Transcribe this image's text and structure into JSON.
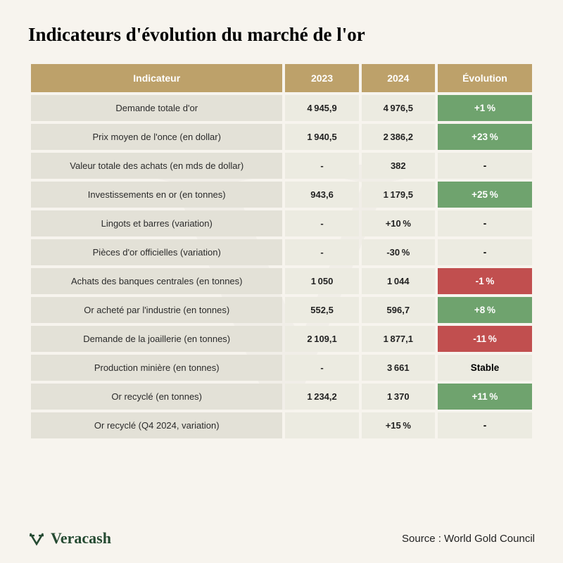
{
  "title": "Indicateurs d'évolution du marché de l'or",
  "table": {
    "type": "table",
    "columns": [
      "Indicateur",
      "2023",
      "2024",
      "Évolution"
    ],
    "header_bg": "#bda16a",
    "header_fg": "#ffffff",
    "label_bg": "#e3e1d7",
    "value_bg": "#ecebe1",
    "evo_pos_bg": "#6fa36e",
    "evo_neg_bg": "#c14f4f",
    "evo_neutral_bg": "#ecebe1",
    "rows": [
      {
        "label": "Demande totale d'or",
        "y2023": "4 945,9",
        "y2024": "4 976,5",
        "evo": "+1 %",
        "evo_state": "pos"
      },
      {
        "label": "Prix moyen de l'once (en dollar)",
        "y2023": "1 940,5",
        "y2024": "2 386,2",
        "evo": "+23 %",
        "evo_state": "pos"
      },
      {
        "label": "Valeur totale des achats (en mds de dollar)",
        "y2023": "-",
        "y2024": "382",
        "evo": "-",
        "evo_state": "neutral"
      },
      {
        "label": "Investissements en or (en tonnes)",
        "y2023": "943,6",
        "y2024": "1 179,5",
        "evo": "+25 %",
        "evo_state": "pos"
      },
      {
        "label": "Lingots et barres (variation)",
        "y2023": "-",
        "y2024": "+10 %",
        "evo": "-",
        "evo_state": "neutral"
      },
      {
        "label": "Pièces d'or officielles (variation)",
        "y2023": "-",
        "y2024": "-30 %",
        "evo": "-",
        "evo_state": "neutral"
      },
      {
        "label": "Achats des banques centrales (en tonnes)",
        "y2023": "1 050",
        "y2024": "1 044",
        "evo": "-1 %",
        "evo_state": "neg"
      },
      {
        "label": "Or acheté par l'industrie (en tonnes)",
        "y2023": "552,5",
        "y2024": "596,7",
        "evo": "+8 %",
        "evo_state": "pos"
      },
      {
        "label": "Demande de la joaillerie (en tonnes)",
        "y2023": "2 109,1",
        "y2024": "1 877,1",
        "evo": "-11 %",
        "evo_state": "neg"
      },
      {
        "label": "Production minière (en tonnes)",
        "y2023": "-",
        "y2024": "3 661",
        "evo": "Stable",
        "evo_state": "neutral"
      },
      {
        "label": "Or recyclé (en tonnes)",
        "y2023": "1 234,2",
        "y2024": "1 370",
        "evo": "+11 %",
        "evo_state": "pos"
      },
      {
        "label": "Or recyclé (Q4 2024, variation)",
        "y2023": "",
        "y2024": "+15 %",
        "evo": "-",
        "evo_state": "neutral"
      }
    ]
  },
  "brand": {
    "name": "Veracash",
    "color": "#254a32"
  },
  "source_label": "Source : World Gold Council",
  "background_color": "#f7f4ee",
  "title_color": "#17212a",
  "title_fontsize": 27,
  "watermark_glyph": "V",
  "watermark_opacity": 0.025
}
